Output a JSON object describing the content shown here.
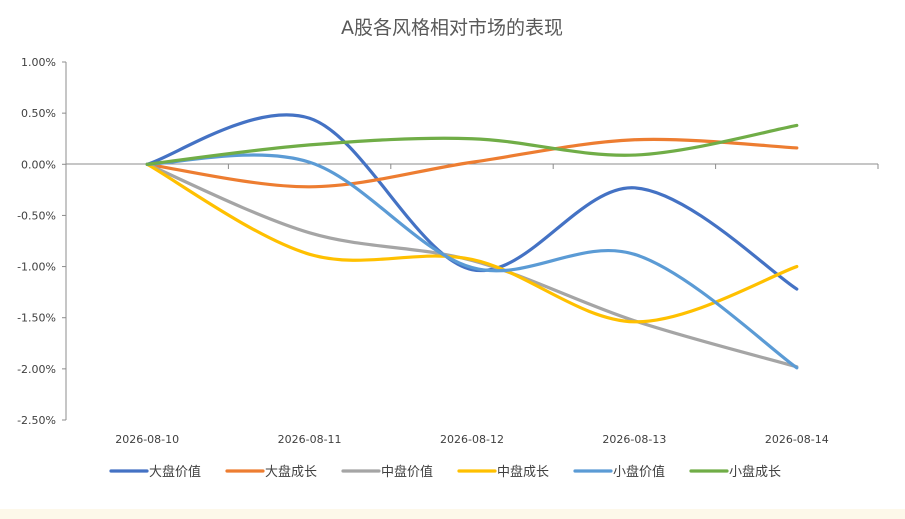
{
  "chart_data": {
    "type": "line",
    "title": "A股各风格相对市场的表现",
    "xlabel": "",
    "ylabel": "",
    "x": [
      "2026-08-10",
      "2026-08-11",
      "2026-08-12",
      "2026-08-13",
      "2026-08-14"
    ],
    "ylim": [
      -0.025,
      0.01
    ],
    "yticks": [
      0.01,
      0.005,
      0.0,
      -0.005,
      -0.01,
      -0.015,
      -0.02,
      -0.025
    ],
    "ytick_labels": [
      "1.00%",
      "0.50%",
      "0.00%",
      "-0.50%",
      "-1.00%",
      "-1.50%",
      "-2.00%",
      "-2.50%"
    ],
    "smooth": true,
    "grid": false,
    "legend_position": "bottom",
    "series": [
      {
        "name": "大盘价值",
        "color": "#4472c4",
        "values": [
          0.0,
          0.0045,
          -0.0103,
          -0.0023,
          -0.0122
        ]
      },
      {
        "name": "大盘成长",
        "color": "#ed7d31",
        "values": [
          0.0,
          -0.0022,
          0.0002,
          0.0024,
          0.0016
        ]
      },
      {
        "name": "中盘价值",
        "color": "#a5a5a5",
        "values": [
          0.0,
          -0.0067,
          -0.0094,
          -0.0153,
          -0.0198
        ]
      },
      {
        "name": "中盘成长",
        "color": "#ffc000",
        "values": [
          0.0,
          -0.0088,
          -0.0093,
          -0.0154,
          -0.01
        ]
      },
      {
        "name": "小盘价值",
        "color": "#5b9bd5",
        "values": [
          0.0,
          0.0002,
          -0.0101,
          -0.0088,
          -0.0199
        ]
      },
      {
        "name": "小盘成长",
        "color": "#70ad47",
        "values": [
          0.0,
          0.0019,
          0.0025,
          0.0009,
          0.0038
        ]
      }
    ]
  }
}
